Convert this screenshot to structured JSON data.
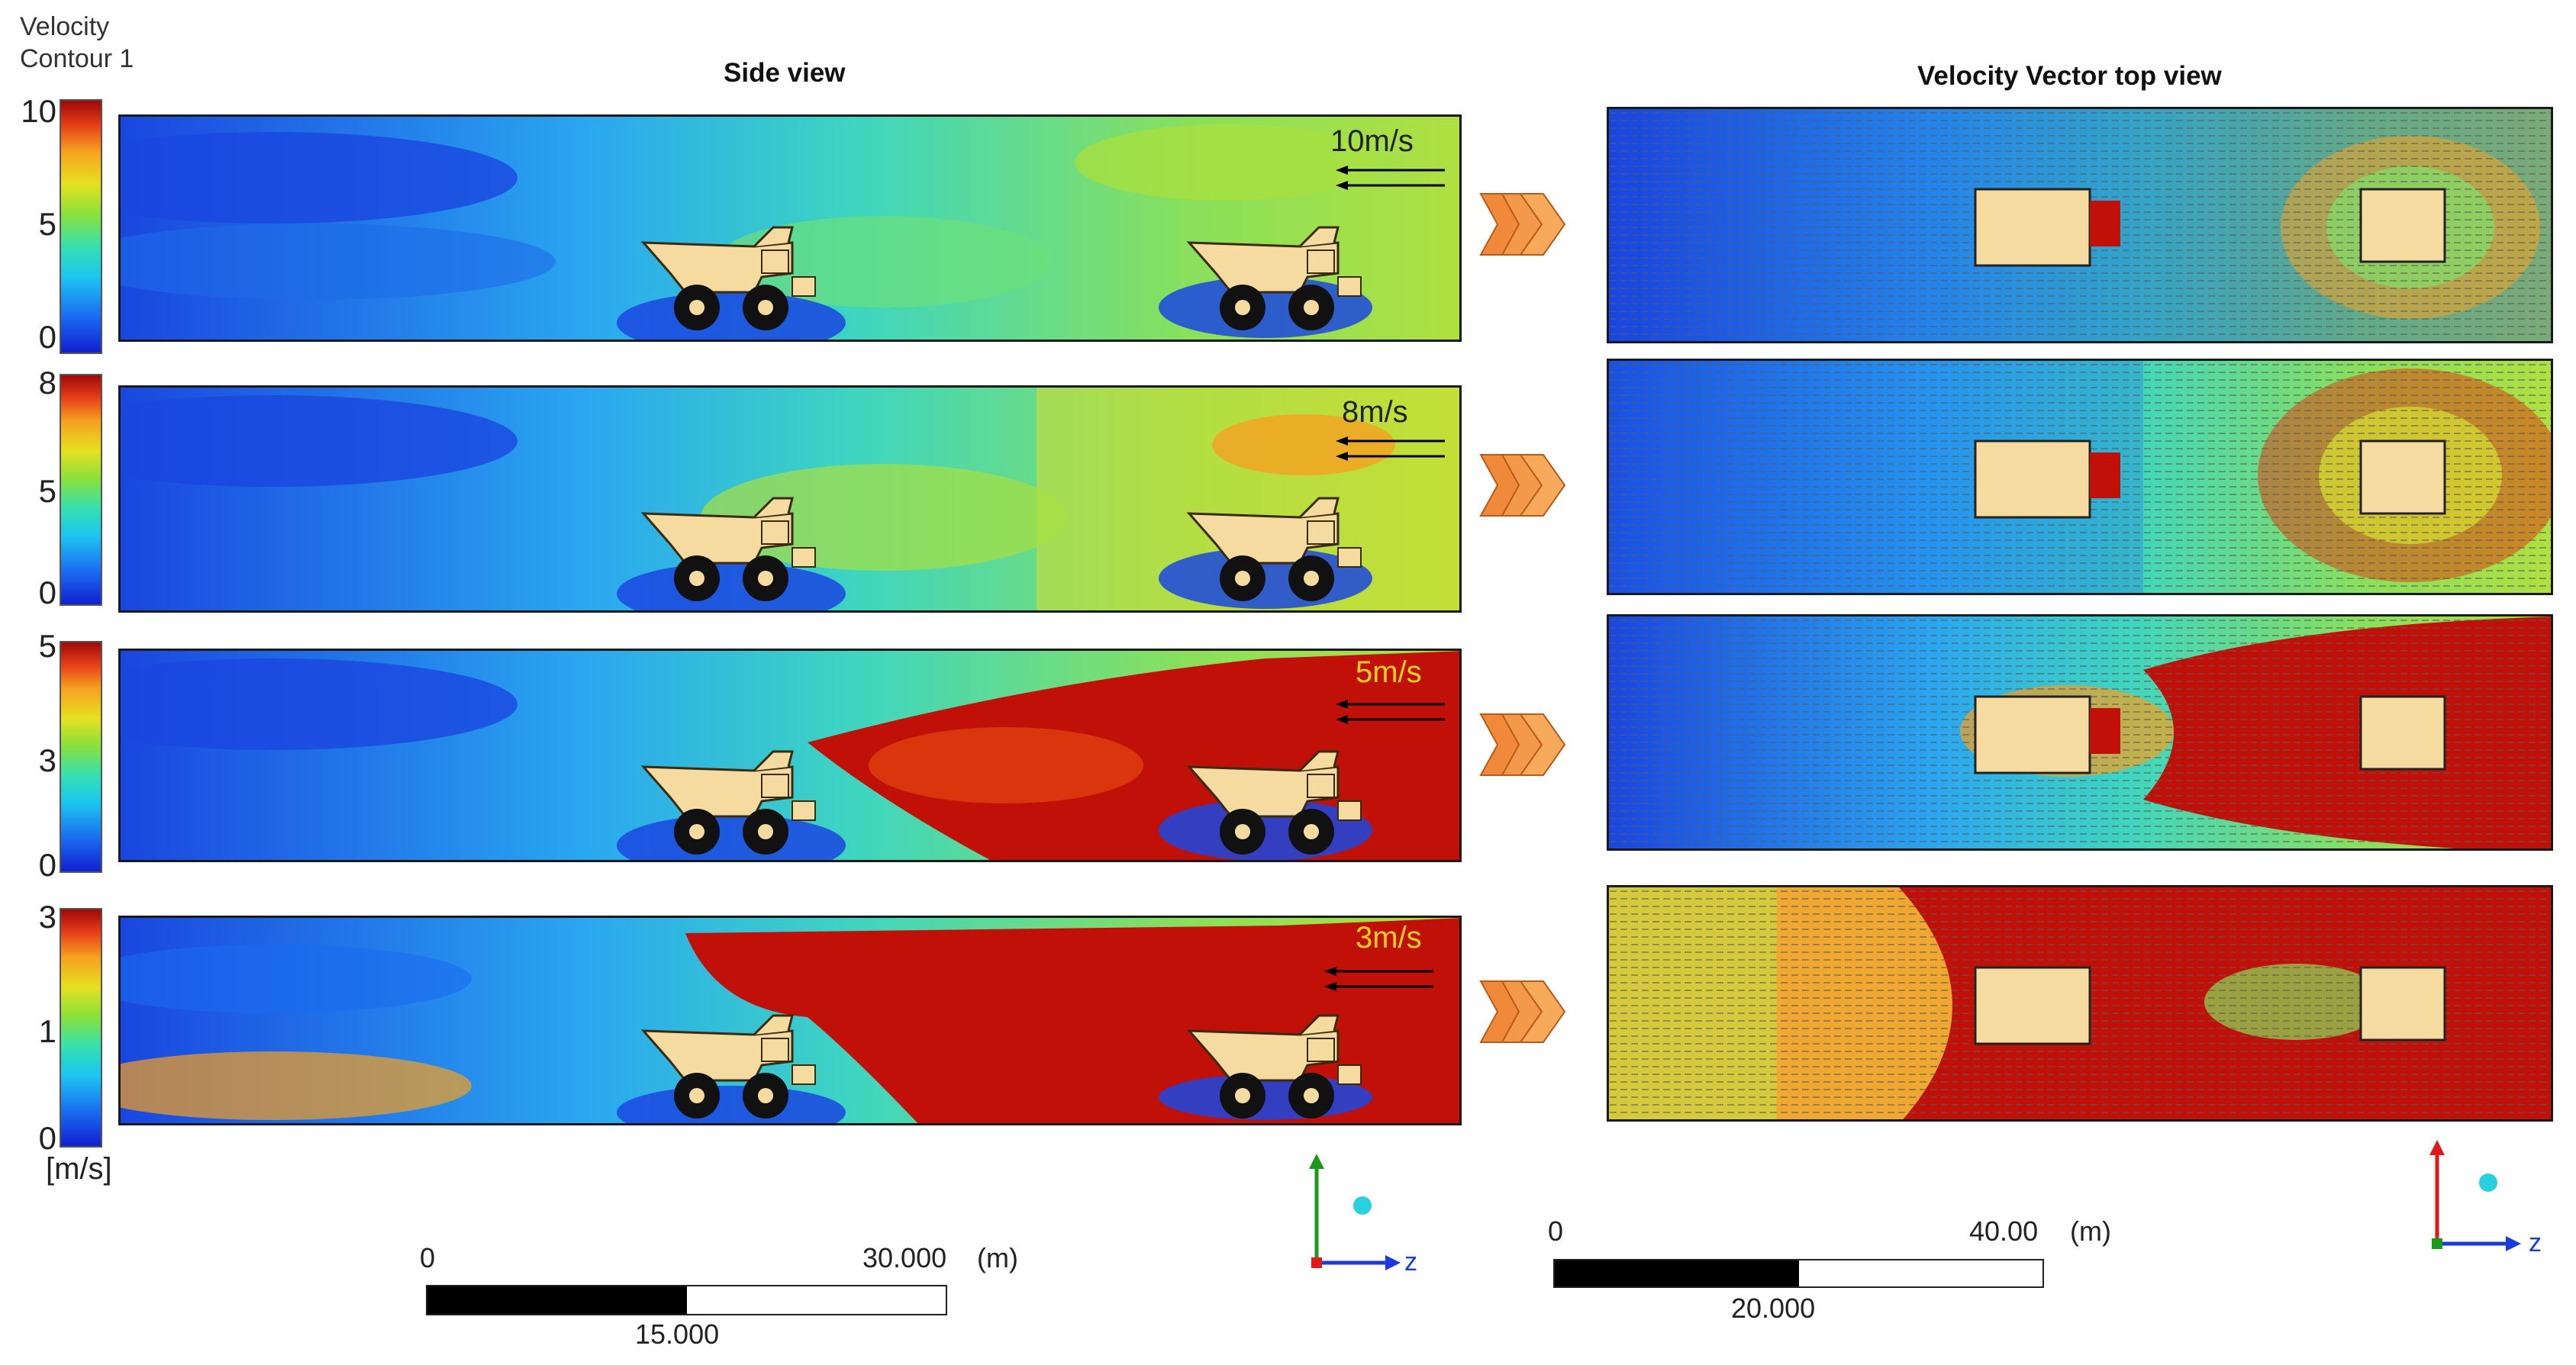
{
  "legend": {
    "title_line1": "Velocity",
    "title_line2": "Contour 1",
    "unit": "[m/s]",
    "bars": [
      {
        "ticks": [
          "10",
          "5",
          "0"
        ]
      },
      {
        "ticks": [
          "8",
          "5",
          "0"
        ]
      },
      {
        "ticks": [
          "5",
          "3",
          "0"
        ]
      },
      {
        "ticks": [
          "3",
          "1",
          "0"
        ]
      }
    ]
  },
  "titles": {
    "side": "Side view",
    "top": "Velocity Vector top view"
  },
  "cases": [
    {
      "speed_label": "10m/s",
      "speed_color": "#111111"
    },
    {
      "speed_label": "8m/s",
      "speed_color": "#111111"
    },
    {
      "speed_label": "5m/s",
      "speed_color": "#ffd21a"
    },
    {
      "speed_label": "3m/s",
      "speed_color": "#ffd21a"
    }
  ],
  "scale_side": {
    "start": "0",
    "end": "30.000",
    "unit": "(m)",
    "mid": "15.000"
  },
  "scale_top": {
    "start": "0",
    "end": "40.00",
    "unit": "(m)",
    "mid": "20.000"
  },
  "axes": {
    "label": "z"
  },
  "colors": {
    "low": "#1020d0",
    "mid": "#5ee08a",
    "high": "#c01008",
    "truck": "#f6dba0",
    "chevron": "#f08a3a"
  }
}
